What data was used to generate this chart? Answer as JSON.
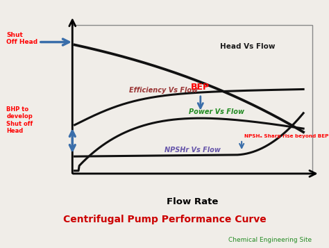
{
  "bg_color": "#f0ede8",
  "plot_bg": "#f0ede8",
  "title": "Centrifugal Pump Performance Curve",
  "title_color": "#cc0000",
  "subtitle": "Chemical Engineering Site",
  "subtitle_color": "#228B22",
  "xlabel": "Flow Rate",
  "head_label": "Head Vs Flow",
  "efficiency_label": "Efficiency Vs Flow",
  "power_label": "Power Vs Flow",
  "npshr_label": "NPSHr Vs Flow",
  "shut_off_head_label": "Shut\nOff Head",
  "bhp_label": "BHP to\ndevelop\nShut off\nHead",
  "bep_label": "BEP",
  "npsha_label": "NPSHₐ Sharp rise beyond BEP",
  "curve_color": "#111111",
  "arrow_color": "#3a6eaa",
  "lw": 2.2
}
